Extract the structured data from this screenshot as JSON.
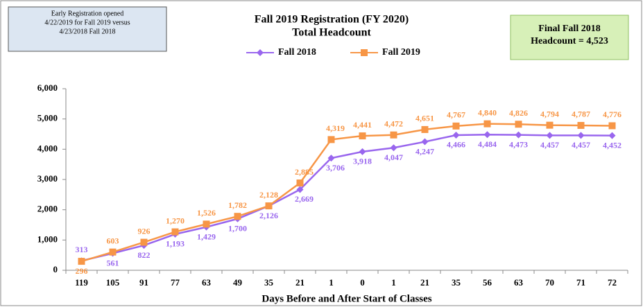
{
  "chart_data": {
    "type": "line",
    "title": "Fall 2019 Registration (FY 2020)",
    "subtitle": "Total Headcount",
    "x_label": "Days Before and After Start of Classes",
    "annotations": [
      {
        "lines": [
          "Early Registration opened",
          "4/22/2019  for Fall 2019  versus",
          "4/23/2018  Fall 2018"
        ]
      },
      {
        "lines": [
          "Final Fall  2018",
          "Headcount = 4,523"
        ]
      }
    ],
    "categories": [
      "119",
      "105",
      "91",
      "77",
      "63",
      "49",
      "35",
      "21",
      "1",
      "0",
      "1",
      "21",
      "35",
      "56",
      "63",
      "70",
      "71",
      "72"
    ],
    "series": [
      {
        "name": "Fall 2018",
        "color": "#9966ee",
        "marker": "diamond",
        "values": [
          313,
          561,
          822,
          1193,
          1429,
          1700,
          2126,
          2669,
          3706,
          3918,
          4047,
          4247,
          4466,
          4484,
          4473,
          4457,
          4457,
          4452
        ],
        "value_labels": [
          "313",
          "561",
          "822",
          "1,193",
          "1,429",
          "1,700",
          "2,126",
          "2,669",
          "3,706",
          "3,918",
          "4,047",
          "4,247",
          "4,466",
          "4,484",
          "4,473",
          "4,457",
          "4,457",
          "4,452"
        ]
      },
      {
        "name": "Fall 2019",
        "color": "#f79646",
        "marker": "square",
        "values": [
          296,
          603,
          926,
          1270,
          1526,
          1782,
          2128,
          2885,
          4319,
          4441,
          4472,
          4651,
          4767,
          4840,
          4826,
          4794,
          4787,
          4776
        ],
        "value_labels": [
          "296",
          "603",
          "926",
          "1,270",
          "1,526",
          "1,782",
          "2,128",
          "2,885",
          "4,319",
          "4,441",
          "4,472",
          "4,651",
          "4,767",
          "4,840",
          "4,826",
          "4,794",
          "4,787",
          "4,776"
        ]
      }
    ],
    "ylim": [
      0,
      6000
    ],
    "yticks": [
      0,
      {
        "value": 1000,
        "label": "1,000"
      },
      {
        "value": 2000,
        "label": "2,000"
      },
      {
        "value": 3000,
        "label": "3,000"
      },
      {
        "value": 4000,
        "label": "4,000"
      },
      {
        "value": 5000,
        "label": "5,000"
      },
      {
        "value": 6000,
        "label": "6,000"
      }
    ],
    "grid": false
  }
}
